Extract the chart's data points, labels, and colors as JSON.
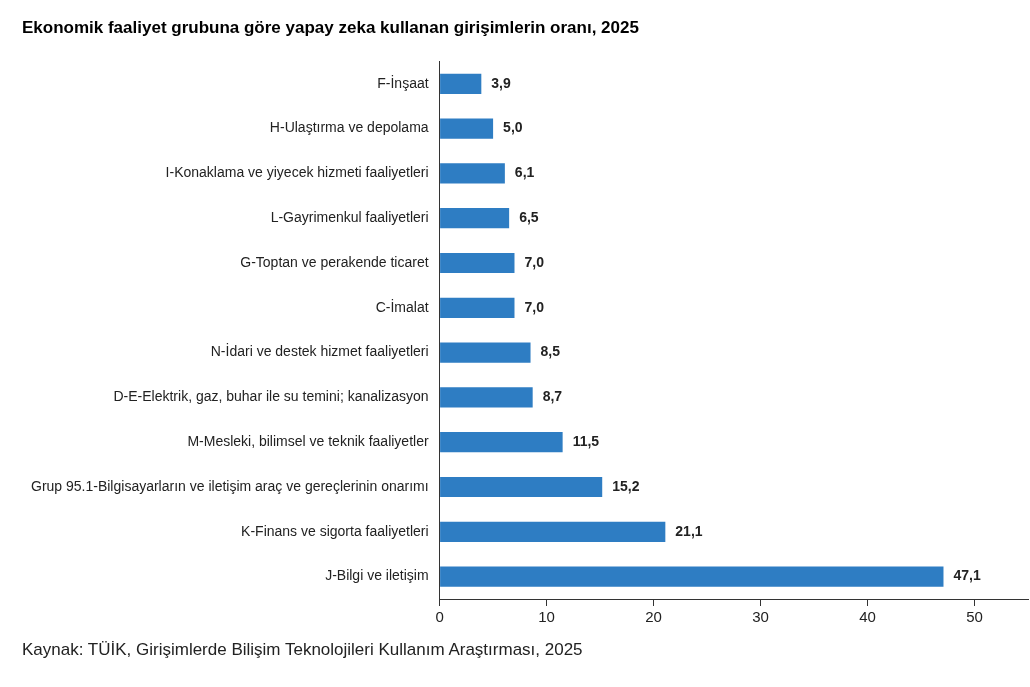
{
  "chart_data": {
    "type": "bar",
    "orientation": "horizontal",
    "title": "Ekonomik faaliyet grubuna göre yapay zeka kullanan girişimlerin oranı, 2025",
    "categories": [
      "F-İnşaat",
      "H-Ulaştırma ve depolama",
      "I-Konaklama ve yiyecek hizmeti faaliyetleri",
      "L-Gayrimenkul faaliyetleri",
      "G-Toptan ve perakende ticaret",
      "C-İmalat",
      "N-İdari ve destek hizmet faaliyetleri",
      "D-E-Elektrik, gaz, buhar ile su temini; kanalizasyon",
      "M-Mesleki, bilimsel ve teknik faaliyetler",
      "Grup 95.1-Bilgisayarların ve iletişim araç ve gereçlerinin onarımı",
      "K-Finans ve sigorta faaliyetleri",
      "J-Bilgi ve iletişim"
    ],
    "values": [
      3.9,
      5.0,
      6.1,
      6.5,
      7.0,
      7.0,
      8.5,
      8.7,
      11.5,
      15.2,
      21.1,
      47.1
    ],
    "value_labels": [
      "3,9",
      "5,0",
      "6,1",
      "6,5",
      "7,0",
      "7,0",
      "8,5",
      "8,7",
      "11,5",
      "15,2",
      "21,1",
      "47,1"
    ],
    "color": "#2e7dc3",
    "xlim": [
      0,
      55
    ],
    "xticks": [
      0,
      10,
      20,
      30,
      40,
      50
    ],
    "grid": false,
    "legend": false,
    "annotations": [
      "Kaynak: TÜİK, Girişimlerde Bilişim Teknolojileri Kullanım Araştırması, 2025"
    ]
  }
}
